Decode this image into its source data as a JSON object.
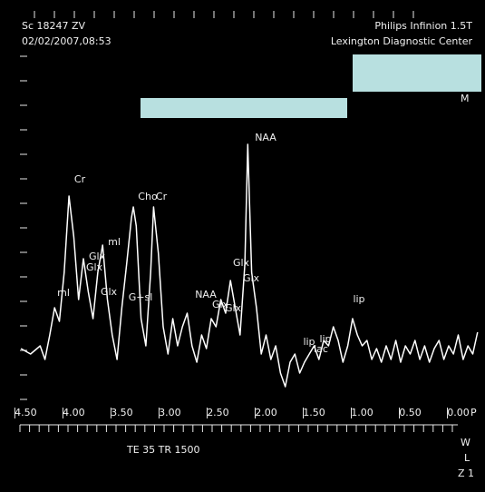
{
  "chart_data": {
    "type": "line",
    "header_left": [
      "Sc 18247 ZV",
      "02/02/2007,08:53"
    ],
    "header_right": [
      "Philips Infinion 1.5T",
      "Lexington Diagnostic Center"
    ],
    "side_label": "M",
    "footer": "TE 35  TR 1500",
    "axis_end_label": "P",
    "controls": [
      "W",
      "L",
      "Z 1"
    ],
    "annotations": [
      "Cr",
      "Cho",
      "Cr",
      "ml",
      "Glx",
      "Glx",
      "Glx",
      "ml",
      "G+sl",
      "NAA",
      "Glx",
      "Glx",
      "Glx",
      "Glx",
      "NAA",
      "lip",
      "lip",
      "lip",
      "lac"
    ],
    "x": [
      4.55,
      4.45,
      4.35,
      4.3,
      4.25,
      4.2,
      4.15,
      4.1,
      4.05,
      4.0,
      3.95,
      3.9,
      3.85,
      3.8,
      3.75,
      3.7,
      3.65,
      3.6,
      3.55,
      3.5,
      3.45,
      3.4,
      3.38,
      3.35,
      3.3,
      3.25,
      3.2,
      3.17,
      3.12,
      3.07,
      3.02,
      2.97,
      2.92,
      2.87,
      2.82,
      2.77,
      2.72,
      2.67,
      2.62,
      2.57,
      2.52,
      2.47,
      2.42,
      2.37,
      2.32,
      2.27,
      2.22,
      2.19,
      2.15,
      2.1,
      2.05,
      2.0,
      1.95,
      1.9,
      1.85,
      1.8,
      1.75,
      1.7,
      1.65,
      1.6,
      1.55,
      1.5,
      1.45,
      1.4,
      1.35,
      1.3,
      1.25,
      1.2,
      1.15,
      1.1,
      1.05,
      1.0,
      0.95,
      0.9,
      0.85,
      0.8,
      0.75,
      0.7,
      0.65,
      0.6,
      0.55,
      0.5,
      0.45,
      0.4,
      0.35,
      0.3,
      0.25,
      0.2,
      0.15,
      0.1,
      0.05,
      0.0,
      -0.05,
      -0.1,
      -0.15,
      -0.2
    ],
    "series": [
      {
        "color": "#ffffff",
        "values": [
          22,
          20,
          23,
          18,
          27,
          37,
          32,
          50,
          78,
          63,
          40,
          55,
          43,
          33,
          50,
          60,
          40,
          27,
          18,
          37,
          53,
          70,
          74,
          67,
          33,
          23,
          50,
          74,
          57,
          30,
          20,
          33,
          23,
          30,
          35,
          23,
          17,
          27,
          22,
          33,
          30,
          40,
          35,
          47,
          37,
          27,
          53,
          97,
          50,
          37,
          20,
          27,
          18,
          23,
          13,
          8,
          17,
          20,
          13,
          17,
          20,
          23,
          18,
          25,
          23,
          30,
          25,
          17,
          23,
          33,
          27,
          23,
          25,
          18,
          22,
          17,
          23,
          18,
          25,
          17,
          23,
          20,
          25,
          18,
          23,
          17,
          22,
          25,
          18,
          23,
          20,
          27,
          18,
          23,
          20,
          28
        ]
      }
    ],
    "xlim": [
      4.56,
      -0.24
    ],
    "ylim": [
      0,
      100
    ],
    "xticks": [
      {
        "value": 4.5,
        "label": "4.50"
      },
      {
        "value": 4.0,
        "label": "4.00"
      },
      {
        "value": 3.5,
        "label": "3.50"
      },
      {
        "value": 3.0,
        "label": "3.00"
      },
      {
        "value": 2.5,
        "label": "2.50"
      },
      {
        "value": 2.0,
        "label": "2.00"
      },
      {
        "value": 1.5,
        "label": "1.50"
      },
      {
        "value": 1.0,
        "label": "1.00"
      },
      {
        "value": 0.5,
        "label": "0.50"
      },
      {
        "value": 0.0,
        "label": "0.00"
      }
    ]
  }
}
